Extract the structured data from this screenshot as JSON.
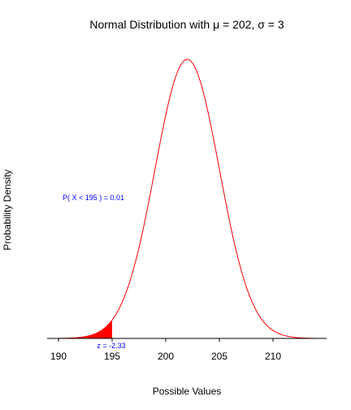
{
  "chart_data": {
    "type": "area",
    "title": "Normal Distribution with μ = 202, σ = 3",
    "xlabel": "Possible Values",
    "ylabel": "Probability Density",
    "distribution": {
      "mean": 202,
      "sd": 3
    },
    "xlim": [
      189,
      214
    ],
    "x_ticks": [
      190,
      195,
      200,
      205,
      210
    ],
    "x_tick_labels": [
      "190",
      "195",
      "200",
      "205",
      "210"
    ],
    "shaded_region": {
      "from": 190,
      "to": 195
    },
    "annotations": {
      "probability": "P( X < 195 ) = 0.01",
      "zscore": "z = -2.33"
    },
    "colors": {
      "curve": "#ff0000",
      "shade": "#ff0000",
      "annotation": "#0000ff",
      "baseline": "#000000"
    },
    "grid": false,
    "legend": "none"
  }
}
